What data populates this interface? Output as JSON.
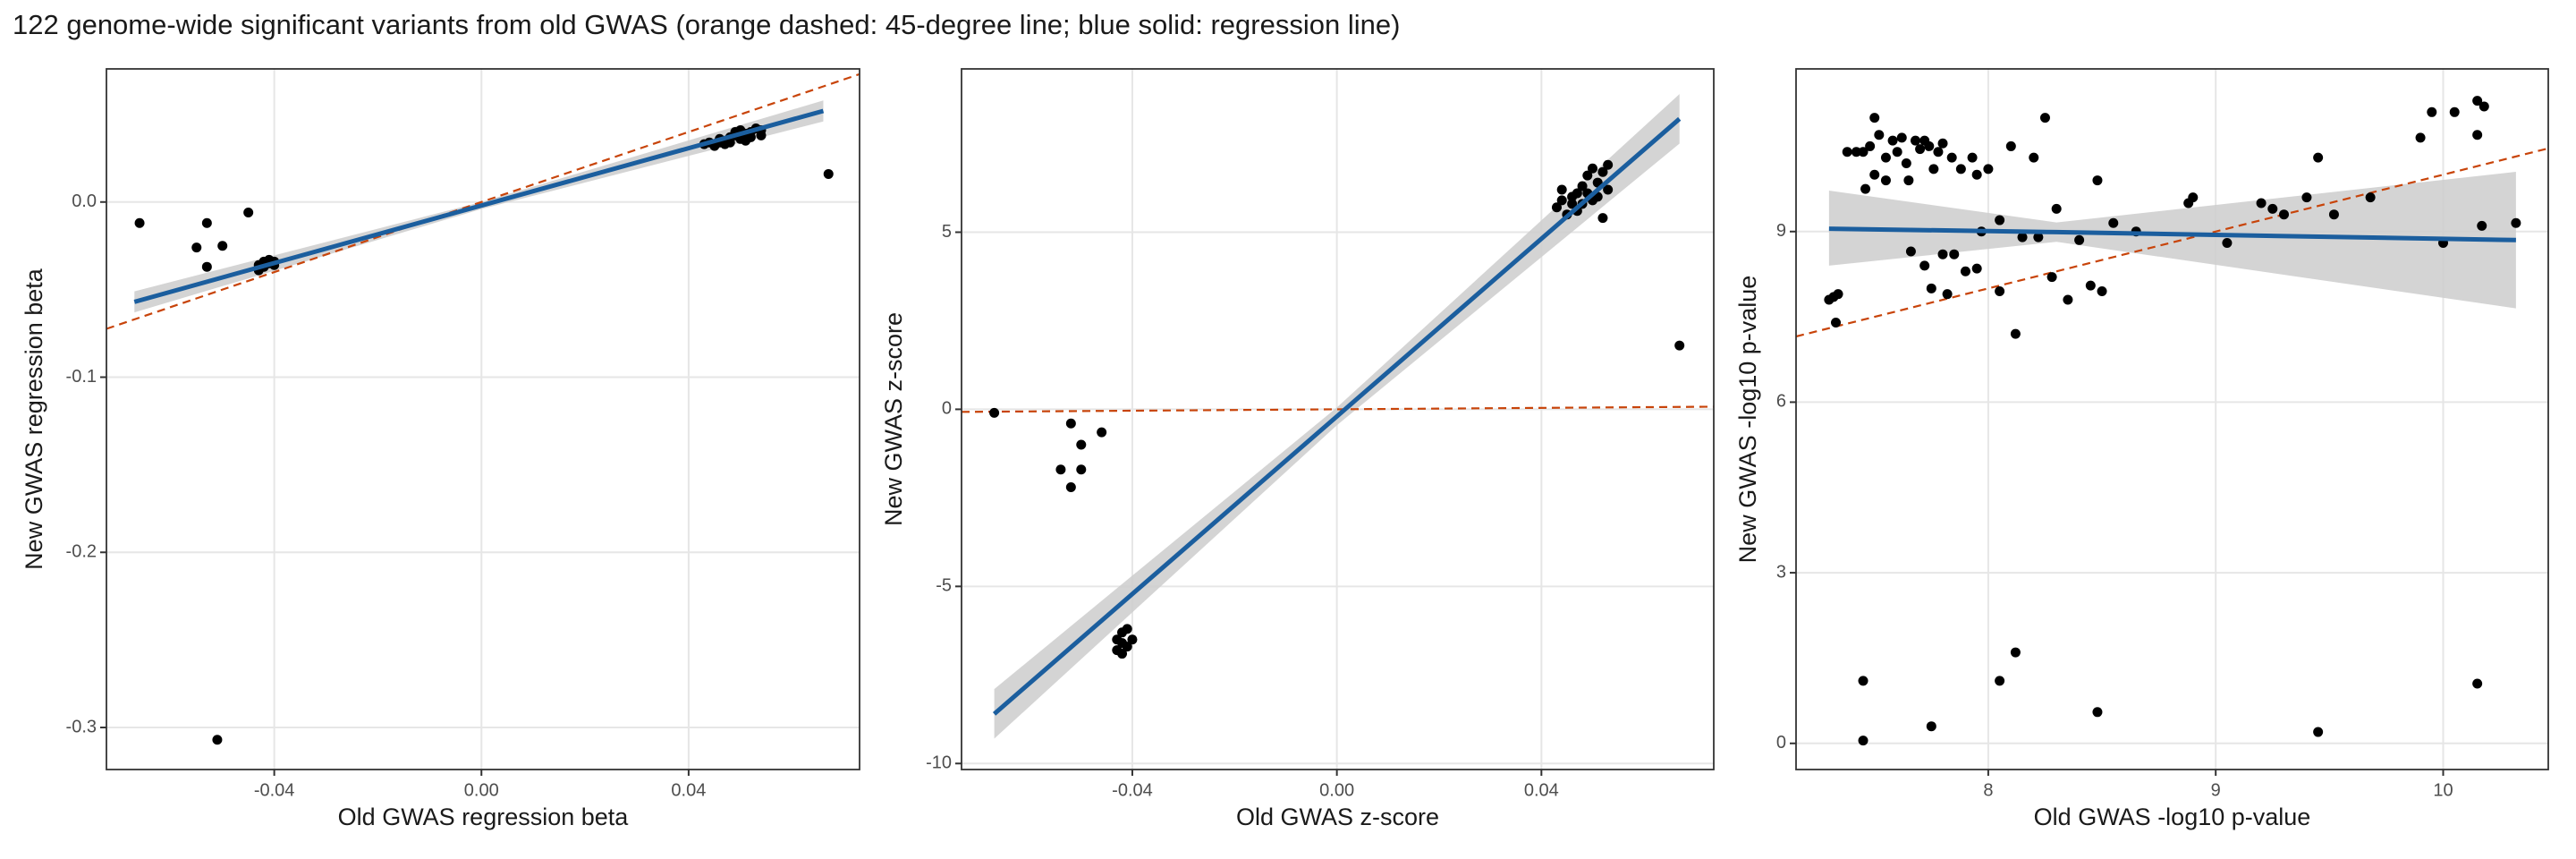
{
  "title": "122 genome-wide significant variants from old GWAS (orange dashed: 45-degree line; blue solid: regression line)",
  "chart_data": [
    {
      "type": "scatter",
      "xlabel": "Old GWAS regression beta",
      "ylabel": "New GWAS regression beta",
      "xlim": [
        -0.0724,
        0.073
      ],
      "ylim": [
        -0.324,
        0.076
      ],
      "xticks": [
        -0.04,
        {
          "value": 0,
          "label": "0.00"
        },
        0.04
      ],
      "yticks": [
        -0.3,
        -0.2,
        -0.1,
        {
          "value": 0,
          "label": "0.0"
        }
      ],
      "grid": true,
      "color": "#000000",
      "x": [
        -0.066,
        -0.055,
        -0.053,
        -0.053,
        -0.05,
        -0.045,
        -0.051,
        -0.043,
        -0.042,
        -0.042,
        -0.041,
        -0.041,
        -0.04,
        -0.043,
        -0.04,
        0.043,
        0.044,
        0.045,
        0.046,
        0.046,
        0.047,
        0.047,
        0.048,
        0.048,
        0.049,
        0.049,
        0.05,
        0.05,
        0.051,
        0.051,
        0.052,
        0.052,
        0.053,
        0.054,
        0.054,
        0.067
      ],
      "values": [
        -0.012,
        -0.026,
        -0.012,
        -0.037,
        -0.025,
        -0.006,
        -0.307,
        -0.036,
        -0.034,
        -0.037,
        -0.033,
        -0.035,
        -0.036,
        -0.039,
        -0.034,
        0.033,
        0.034,
        0.032,
        0.034,
        0.036,
        0.033,
        0.035,
        0.037,
        0.034,
        0.038,
        0.04,
        0.041,
        0.036,
        0.039,
        0.035,
        0.04,
        0.037,
        0.042,
        0.041,
        0.038,
        0.016
      ],
      "reference_line": {
        "slope": 1,
        "intercept": 0,
        "color": "#c8440a"
      },
      "regression": {
        "color": "#1b5e9e",
        "band_color": "#cccccc",
        "x": [
          -0.067,
          0,
          0.066
        ],
        "y": [
          -0.057,
          -0.002,
          0.052
        ],
        "ci_lower": [
          -0.063,
          -0.004,
          0.046
        ],
        "ci_upper": [
          -0.051,
          0.0,
          0.058
        ]
      }
    },
    {
      "type": "scatter",
      "xlabel": "Old GWAS z-score",
      "ylabel": "New GWAS z-score",
      "xlim": [
        -0.0734,
        0.0737
      ],
      "ylim": [
        -10.17,
        9.61
      ],
      "xticks": [
        -0.04,
        {
          "value": 0,
          "label": "0.00"
        },
        0.04
      ],
      "yticks": [
        -10,
        -5,
        0,
        5
      ],
      "grid": true,
      "color": "#000000",
      "x": [
        -0.067,
        -0.052,
        -0.05,
        -0.046,
        -0.054,
        -0.052,
        -0.05,
        -0.043,
        -0.043,
        -0.042,
        -0.042,
        -0.041,
        -0.041,
        -0.04,
        -0.042,
        0.043,
        0.044,
        0.044,
        0.045,
        0.046,
        0.046,
        0.047,
        0.047,
        0.048,
        0.048,
        0.049,
        0.049,
        0.05,
        0.05,
        0.051,
        0.051,
        0.052,
        0.052,
        0.053,
        0.053,
        0.067
      ],
      "values": [
        -0.1,
        -0.4,
        -1.0,
        -0.65,
        -1.7,
        -2.2,
        -1.7,
        -6.5,
        -6.8,
        -6.3,
        -6.6,
        -6.2,
        -6.7,
        -6.5,
        -6.9,
        5.7,
        5.9,
        6.2,
        5.5,
        6.0,
        5.8,
        6.1,
        5.6,
        6.3,
        5.8,
        6.6,
        6.1,
        6.8,
        5.9,
        6.4,
        6.0,
        6.7,
        5.4,
        6.9,
        6.2,
        1.8
      ],
      "reference_line": {
        "slope": 1,
        "intercept": 0,
        "color": "#c8440a"
      },
      "regression": {
        "color": "#1b5e9e",
        "band_color": "#cccccc",
        "x": [
          -0.067,
          0,
          0.067
        ],
        "y": [
          -8.6,
          -0.2,
          8.2
        ],
        "ci_lower": [
          -9.3,
          -0.45,
          7.5
        ],
        "ci_upper": [
          -7.9,
          0.05,
          8.9
        ]
      }
    },
    {
      "type": "scatter",
      "xlabel": "Old GWAS -log10 p-value",
      "ylabel": "New GWAS -log10 p-value",
      "xlim": [
        7.155,
        10.462
      ],
      "ylim": [
        -0.46,
        11.86
      ],
      "xticks": [
        8,
        9,
        10
      ],
      "yticks": [
        0,
        3,
        6,
        9
      ],
      "grid": true,
      "color": "#000000",
      "x": [
        7.3,
        7.32,
        7.34,
        7.33,
        7.38,
        7.42,
        7.45,
        7.46,
        7.48,
        7.5,
        7.5,
        7.52,
        7.55,
        7.55,
        7.58,
        7.6,
        7.62,
        7.64,
        7.65,
        7.66,
        7.68,
        7.7,
        7.72,
        7.72,
        7.74,
        7.75,
        7.76,
        7.78,
        7.8,
        7.8,
        7.82,
        7.84,
        7.85,
        7.88,
        7.9,
        7.93,
        7.95,
        7.95,
        7.97,
        8.0,
        8.05,
        8.05,
        8.1,
        8.12,
        8.15,
        8.2,
        8.22,
        8.25,
        8.28,
        8.3,
        8.35,
        8.4,
        8.45,
        8.48,
        8.5,
        8.55,
        8.65,
        8.88,
        8.9,
        9.05,
        9.2,
        9.25,
        9.3,
        9.4,
        9.45,
        9.52,
        9.68,
        9.9,
        9.95,
        10.0,
        10.05,
        10.15,
        10.18,
        10.15,
        10.17,
        10.32,
        7.45,
        7.45,
        7.75,
        8.05,
        8.12,
        8.48,
        9.45,
        10.15
      ],
      "values": [
        7.8,
        7.85,
        7.9,
        7.4,
        10.4,
        10.4,
        10.4,
        9.75,
        10.5,
        11.0,
        10.0,
        10.7,
        10.3,
        9.9,
        10.6,
        10.4,
        10.65,
        10.2,
        9.9,
        8.65,
        10.6,
        10.45,
        10.6,
        8.4,
        10.5,
        8.0,
        10.1,
        10.4,
        10.55,
        8.6,
        7.9,
        10.3,
        8.6,
        10.1,
        8.3,
        10.3,
        10.0,
        8.35,
        9.0,
        10.1,
        9.2,
        7.95,
        10.5,
        7.2,
        8.9,
        10.3,
        8.9,
        11.0,
        8.2,
        9.4,
        7.8,
        8.85,
        8.05,
        9.9,
        7.95,
        9.15,
        9.0,
        9.5,
        9.6,
        8.8,
        9.5,
        9.4,
        9.3,
        9.6,
        10.3,
        9.3,
        9.6,
        10.65,
        11.1,
        8.8,
        11.1,
        11.3,
        11.2,
        10.7,
        9.1,
        9.15,
        1.1,
        0.05,
        0.3,
        1.1,
        1.6,
        0.55,
        0.2,
        1.05
      ],
      "reference_line": {
        "slope": 1,
        "intercept": 0,
        "color": "#c8440a"
      },
      "regression": {
        "color": "#1b5e9e",
        "band_color": "#cccccc",
        "x": [
          7.3,
          8.3,
          10.32
        ],
        "y": [
          9.05,
          8.99,
          8.85
        ],
        "ci_lower": [
          8.4,
          8.82,
          7.65
        ],
        "ci_upper": [
          9.72,
          9.16,
          10.05
        ]
      }
    }
  ]
}
